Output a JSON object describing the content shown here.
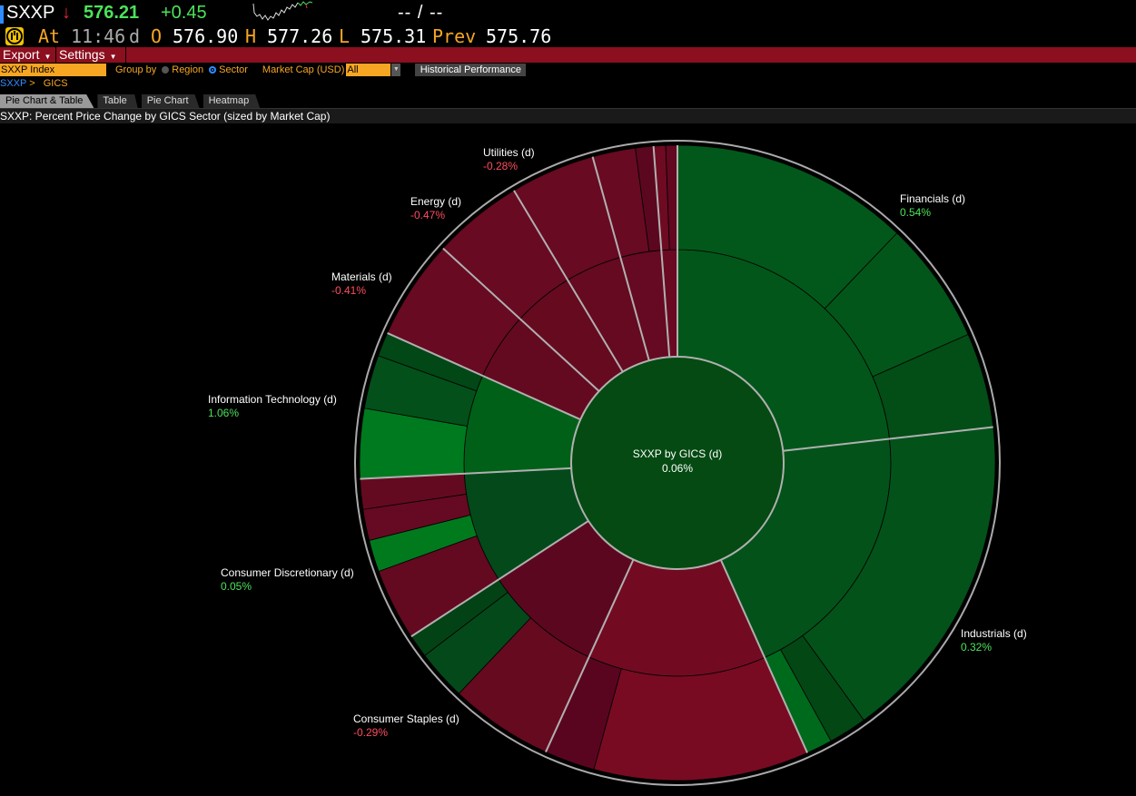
{
  "header": {
    "ticker": "SXXP",
    "direction_arrow": "↓",
    "last_price": "576.21",
    "net_change": "+0.45",
    "bid_ask": "-- / --",
    "at_label": "At",
    "time": "11:46",
    "time_suffix": "d",
    "open_label": "O",
    "open": "576.90",
    "high_label": "H",
    "high": "577.26",
    "low_label": "L",
    "low": "575.31",
    "prev_label": "Prev",
    "prev": "575.76"
  },
  "menu": {
    "export": "Export",
    "settings": "Settings",
    "caret": "▼"
  },
  "toolbar": {
    "security": "SXXP Index",
    "group_by_label": "Group by",
    "region": "Region",
    "sector": "Sector",
    "group_by_selected": "Sector",
    "market_cap_label": "Market Cap (USD)",
    "market_cap_value": "All",
    "historical_performance": "Historical Performance"
  },
  "breadcrumb": {
    "root": "SXXP",
    "sep": ">",
    "current": "GICS"
  },
  "tabs": [
    {
      "label": "Pie Chart & Table",
      "active": true
    },
    {
      "label": "Table",
      "active": false
    },
    {
      "label": "Pie Chart",
      "active": false
    },
    {
      "label": "Heatmap",
      "active": false
    }
  ],
  "chart_title": "SXXP: Percent Price Change by GICS Sector (sized by Market Cap)",
  "chart_data": {
    "type": "sunburst",
    "title": "SXXP: Percent Price Change by GICS Sector (sized by Market Cap)",
    "center": {
      "label": "SXXP by GICS (d)",
      "value": "0.06%",
      "color": "#044a12"
    },
    "sectors": [
      {
        "label": "Financials (d)",
        "value": "0.54%",
        "share": 23.2,
        "color": "#02561a",
        "children": [
          [
            0.523,
            "#02581a"
          ],
          [
            0.269,
            "#03561a"
          ],
          [
            0.208,
            "#034d16"
          ]
        ]
      },
      {
        "label": "Industrials (d)",
        "value": "0.32%",
        "share": 20.1,
        "color": "#03521a",
        "children": [
          [
            0.837,
            "#03521a"
          ],
          [
            0.097,
            "#034714"
          ],
          [
            0.066,
            "#006a1c"
          ]
        ]
      },
      {
        "label": null,
        "value": null,
        "share": 13.5,
        "color": "#720b22",
        "children": [
          [
            0.81,
            "#780b22"
          ],
          [
            0.19,
            "#5a0520"
          ]
        ]
      },
      {
        "label": "Consumer Staples (d)",
        "value": "-0.29%",
        "share": 9.0,
        "color": "#5c0720",
        "children": [
          [
            0.585,
            "#660a20"
          ],
          [
            0.285,
            "#04491a"
          ],
          [
            0.13,
            "#034214"
          ]
        ]
      },
      {
        "label": "Consumer Discretionary (d)",
        "value": "0.05%",
        "share": 8.4,
        "color": "#04491a",
        "children": [
          [
            0.435,
            "#630920"
          ],
          [
            0.193,
            "#017a1e"
          ],
          [
            0.189,
            "#650a22"
          ],
          [
            0.183,
            "#640a20"
          ]
        ]
      },
      {
        "label": "Information Technology (d)",
        "value": "1.06%",
        "share": 7.5,
        "color": "#016018",
        "children": [
          [
            0.474,
            "#007a1e"
          ],
          [
            0.363,
            "#03501a"
          ],
          [
            0.163,
            "#024716"
          ]
        ]
      },
      {
        "label": "Materials (d)",
        "value": "-0.41%",
        "share": 5.1,
        "color": "#640a20",
        "children": [
          [
            1,
            "#680a22"
          ]
        ]
      },
      {
        "label": "Energy (d)",
        "value": "-0.47%",
        "share": 4.6,
        "color": "#660a20",
        "children": [
          [
            1,
            "#680a22"
          ]
        ]
      },
      {
        "label": "Utilities (d)",
        "value": "-0.28%",
        "share": 4.3,
        "color": "#650a20",
        "children": [
          [
            1,
            "#670a22"
          ]
        ]
      },
      {
        "label": null,
        "value": null,
        "share": 3.1,
        "color": "#650a22",
        "children": [
          [
            0.705,
            "#670a22"
          ],
          [
            0.295,
            "#5c0720"
          ]
        ]
      },
      {
        "label": null,
        "value": null,
        "share": 1.2,
        "color": "#6a0a22",
        "children": [
          [
            0.51,
            "#6e0a22"
          ],
          [
            0.49,
            "#620820"
          ]
        ]
      }
    ]
  },
  "colors": {
    "positive": "#4be35a",
    "negative": "#ff4d5e",
    "accent": "#f6a623",
    "menubar": "#8b0f1f"
  }
}
